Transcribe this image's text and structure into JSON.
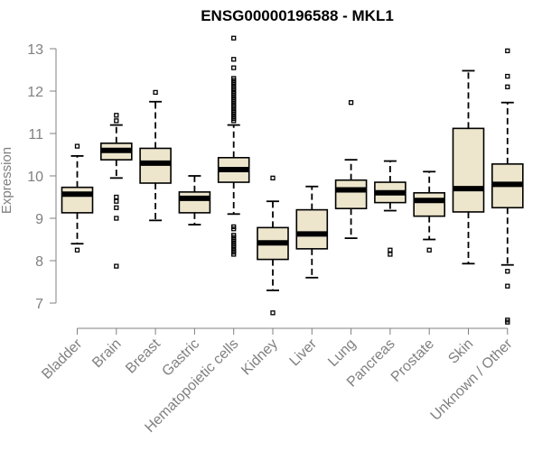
{
  "chart_data": {
    "type": "boxplot",
    "title": "ENSG00000196588 - MKL1",
    "xlabel": "",
    "ylabel": "Expression",
    "ylim": [
      6.5,
      13.2
    ],
    "yticks": [
      7,
      8,
      9,
      10,
      11,
      12,
      13
    ],
    "categories": [
      "Bladder",
      "Brain",
      "Breast",
      "Gastric",
      "Hematopoietic cells",
      "Kidney",
      "Liver",
      "Lung",
      "Pancreas",
      "Prostate",
      "Skin",
      "Unknown / Other"
    ],
    "boxes": [
      {
        "name": "Bladder",
        "whislo": 8.4,
        "q1": 9.13,
        "med": 9.57,
        "q3": 9.73,
        "whishi": 10.47,
        "fliers": [
          10.7,
          8.25
        ]
      },
      {
        "name": "Brain",
        "whislo": 9.95,
        "q1": 10.38,
        "med": 10.6,
        "q3": 10.77,
        "whishi": 11.2,
        "fliers": [
          11.43,
          11.3,
          9.5,
          9.4,
          9.25,
          9.0,
          7.87
        ]
      },
      {
        "name": "Breast",
        "whislo": 8.95,
        "q1": 9.83,
        "med": 10.3,
        "q3": 10.65,
        "whishi": 11.75,
        "fliers": [
          11.97
        ]
      },
      {
        "name": "Gastric",
        "whislo": 8.85,
        "q1": 9.13,
        "med": 9.47,
        "q3": 9.62,
        "whishi": 10.0,
        "fliers": []
      },
      {
        "name": "Hematopoietic cells",
        "whislo": 9.1,
        "q1": 9.85,
        "med": 10.15,
        "q3": 10.43,
        "whishi": 11.2,
        "fliers": [
          13.25,
          12.75,
          12.55,
          12.3,
          12.25,
          12.2,
          12.15,
          12.1,
          12.05,
          12.0,
          11.95,
          11.9,
          11.85,
          11.8,
          11.75,
          11.7,
          11.65,
          11.6,
          11.55,
          11.5,
          11.45,
          11.4,
          11.35,
          11.3,
          8.8,
          8.75,
          8.6,
          8.55,
          8.5,
          8.45,
          8.4,
          8.35,
          8.3,
          8.25,
          8.2,
          8.15
        ]
      },
      {
        "name": "Kidney",
        "whislo": 7.3,
        "q1": 8.03,
        "med": 8.42,
        "q3": 8.78,
        "whishi": 9.4,
        "fliers": [
          9.95,
          6.77
        ]
      },
      {
        "name": "Liver",
        "whislo": 7.6,
        "q1": 8.28,
        "med": 8.63,
        "q3": 9.2,
        "whishi": 9.75,
        "fliers": []
      },
      {
        "name": "Lung",
        "whislo": 8.53,
        "q1": 9.23,
        "med": 9.67,
        "q3": 9.9,
        "whishi": 10.38,
        "fliers": [
          11.73
        ]
      },
      {
        "name": "Pancreas",
        "whislo": 9.18,
        "q1": 9.37,
        "med": 9.6,
        "q3": 9.85,
        "whishi": 10.35,
        "fliers": [
          8.25,
          8.15
        ]
      },
      {
        "name": "Prostate",
        "whislo": 8.5,
        "q1": 9.05,
        "med": 9.42,
        "q3": 9.6,
        "whishi": 10.1,
        "fliers": [
          8.25
        ]
      },
      {
        "name": "Skin",
        "whislo": 7.93,
        "q1": 9.15,
        "med": 9.7,
        "q3": 11.12,
        "whishi": 12.48,
        "fliers": []
      },
      {
        "name": "Unknown / Other",
        "whislo": 7.9,
        "q1": 9.25,
        "med": 9.8,
        "q3": 10.28,
        "whishi": 11.73,
        "fliers": [
          12.95,
          12.35,
          12.1,
          7.75,
          7.4,
          6.6,
          6.55
        ]
      }
    ],
    "colors": {
      "box_fill": "#ede6cd",
      "stroke": "#000000",
      "axis": "#808080"
    }
  }
}
